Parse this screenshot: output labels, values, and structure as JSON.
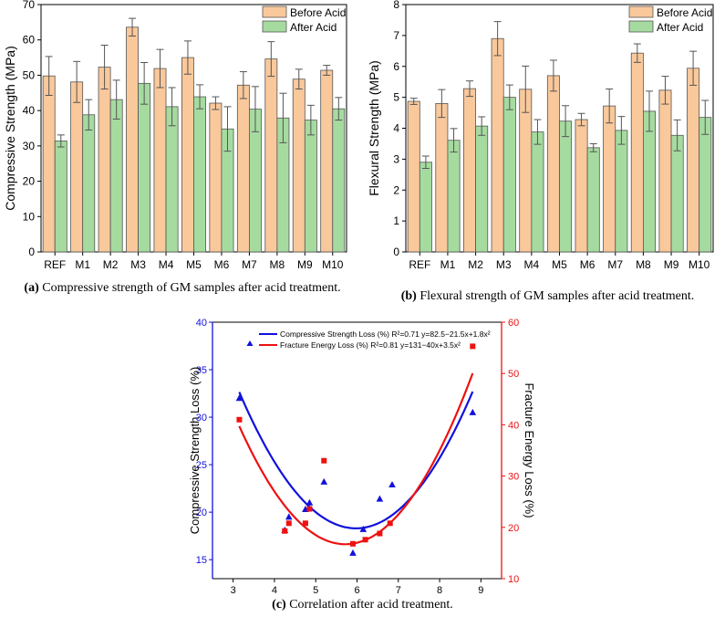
{
  "chart_data": [
    {
      "id": "a",
      "type": "bar",
      "ylabel": "Compressive Strength (MPa)",
      "ylim": [
        0,
        70
      ],
      "yticks": [
        0,
        10,
        20,
        30,
        40,
        50,
        60,
        70
      ],
      "categories": [
        "REF",
        "M1",
        "M2",
        "M3",
        "M4",
        "M5",
        "M6",
        "M7",
        "M8",
        "M9",
        "M10"
      ],
      "series": [
        {
          "name": "Before Acid",
          "color": "#f9c89b",
          "values": [
            49.8,
            48.1,
            52.3,
            63.6,
            51.9,
            55.0,
            42.1,
            47.2,
            54.6,
            48.9,
            51.4
          ],
          "errors": [
            5.5,
            5.8,
            6.2,
            2.5,
            5.4,
            4.7,
            1.8,
            3.8,
            4.9,
            2.8,
            1.4
          ]
        },
        {
          "name": "After Acid",
          "color": "#a6dba0",
          "values": [
            31.4,
            38.8,
            43.1,
            47.7,
            41.1,
            43.9,
            34.8,
            40.4,
            37.9,
            37.3,
            40.5
          ],
          "errors": [
            1.7,
            4.3,
            5.5,
            5.9,
            5.4,
            3.4,
            6.3,
            6.4,
            7.0,
            4.2,
            3.2
          ]
        }
      ],
      "caption_label": "(a)",
      "caption_text": " Compressive strength of GM samples after acid treatment."
    },
    {
      "id": "b",
      "type": "bar",
      "ylabel": "Flexural Strength (MPa)",
      "ylim": [
        0,
        8
      ],
      "yticks": [
        0,
        1,
        2,
        3,
        4,
        5,
        6,
        7,
        8
      ],
      "categories": [
        "REF",
        "M1",
        "M2",
        "M3",
        "M4",
        "M5",
        "M6",
        "M7",
        "M8",
        "M9",
        "M10"
      ],
      "series": [
        {
          "name": "Before Acid",
          "color": "#f9c89b",
          "values": [
            4.87,
            4.8,
            5.28,
            6.9,
            5.26,
            5.7,
            4.28,
            4.72,
            6.43,
            5.23,
            5.94
          ],
          "errors": [
            0.1,
            0.45,
            0.25,
            0.55,
            0.75,
            0.5,
            0.2,
            0.55,
            0.3,
            0.45,
            0.55
          ]
        },
        {
          "name": "After Acid",
          "color": "#a6dba0",
          "values": [
            2.9,
            3.61,
            4.07,
            5.0,
            3.88,
            4.23,
            3.37,
            3.93,
            4.55,
            3.77,
            4.35
          ],
          "errors": [
            0.2,
            0.38,
            0.3,
            0.4,
            0.4,
            0.5,
            0.13,
            0.45,
            0.65,
            0.5,
            0.55
          ]
        }
      ],
      "caption_label": "(b)",
      "caption_text": " Flexural strength of GM samples after acid treatment."
    },
    {
      "id": "c",
      "type": "scatter",
      "xlabel": "Apparent Porosity (%)",
      "xlim": [
        2.5,
        9.5
      ],
      "xticks": [
        3,
        4,
        5,
        6,
        7,
        8,
        9
      ],
      "ylabel_left": "Compressive Strength Loss (%)",
      "ylim_left": [
        13,
        40
      ],
      "yticks_left": [
        15,
        20,
        25,
        30,
        35,
        40
      ],
      "ylabel_right": "Fracture Energy Loss (%)",
      "ylim_right": [
        10,
        60
      ],
      "yticks_right": [
        10,
        20,
        30,
        40,
        50,
        60
      ],
      "series": [
        {
          "name": "Compressive Strength Loss (%)",
          "axis": "left",
          "color": "#1111dd",
          "marker": "triangle",
          "legend_text": "Compressive Strength Loss (%) R²=0.71 y=82.5−21.5x+1.8x²",
          "fit": {
            "a": 82.5,
            "b": -21.5,
            "c": 1.8
          },
          "x": [
            3.15,
            4.25,
            4.35,
            4.75,
            4.85,
            5.2,
            5.9,
            6.15,
            6.55,
            6.85,
            8.8
          ],
          "y": [
            32.0,
            18.1,
            19.5,
            20.3,
            21.0,
            23.2,
            15.7,
            18.2,
            21.4,
            22.9,
            30.5
          ]
        },
        {
          "name": "Fracture Energy Loss (%)",
          "axis": "right",
          "color": "#ee1111",
          "marker": "square",
          "legend_text": "Fracture Energy Loss (%) R²=0.81 y=131−40x+3.5x²",
          "fit": {
            "a": 131,
            "b": -40,
            "c": 3.5
          },
          "x": [
            3.15,
            4.25,
            4.35,
            4.75,
            4.85,
            5.2,
            5.9,
            6.2,
            6.55,
            6.8,
            8.8
          ],
          "y": [
            41.0,
            19.3,
            20.8,
            20.8,
            23.6,
            33.0,
            16.8,
            17.6,
            18.8,
            20.8,
            55.3
          ]
        }
      ],
      "caption_label": "(c)",
      "caption_text": " Correlation after acid treatment."
    }
  ]
}
